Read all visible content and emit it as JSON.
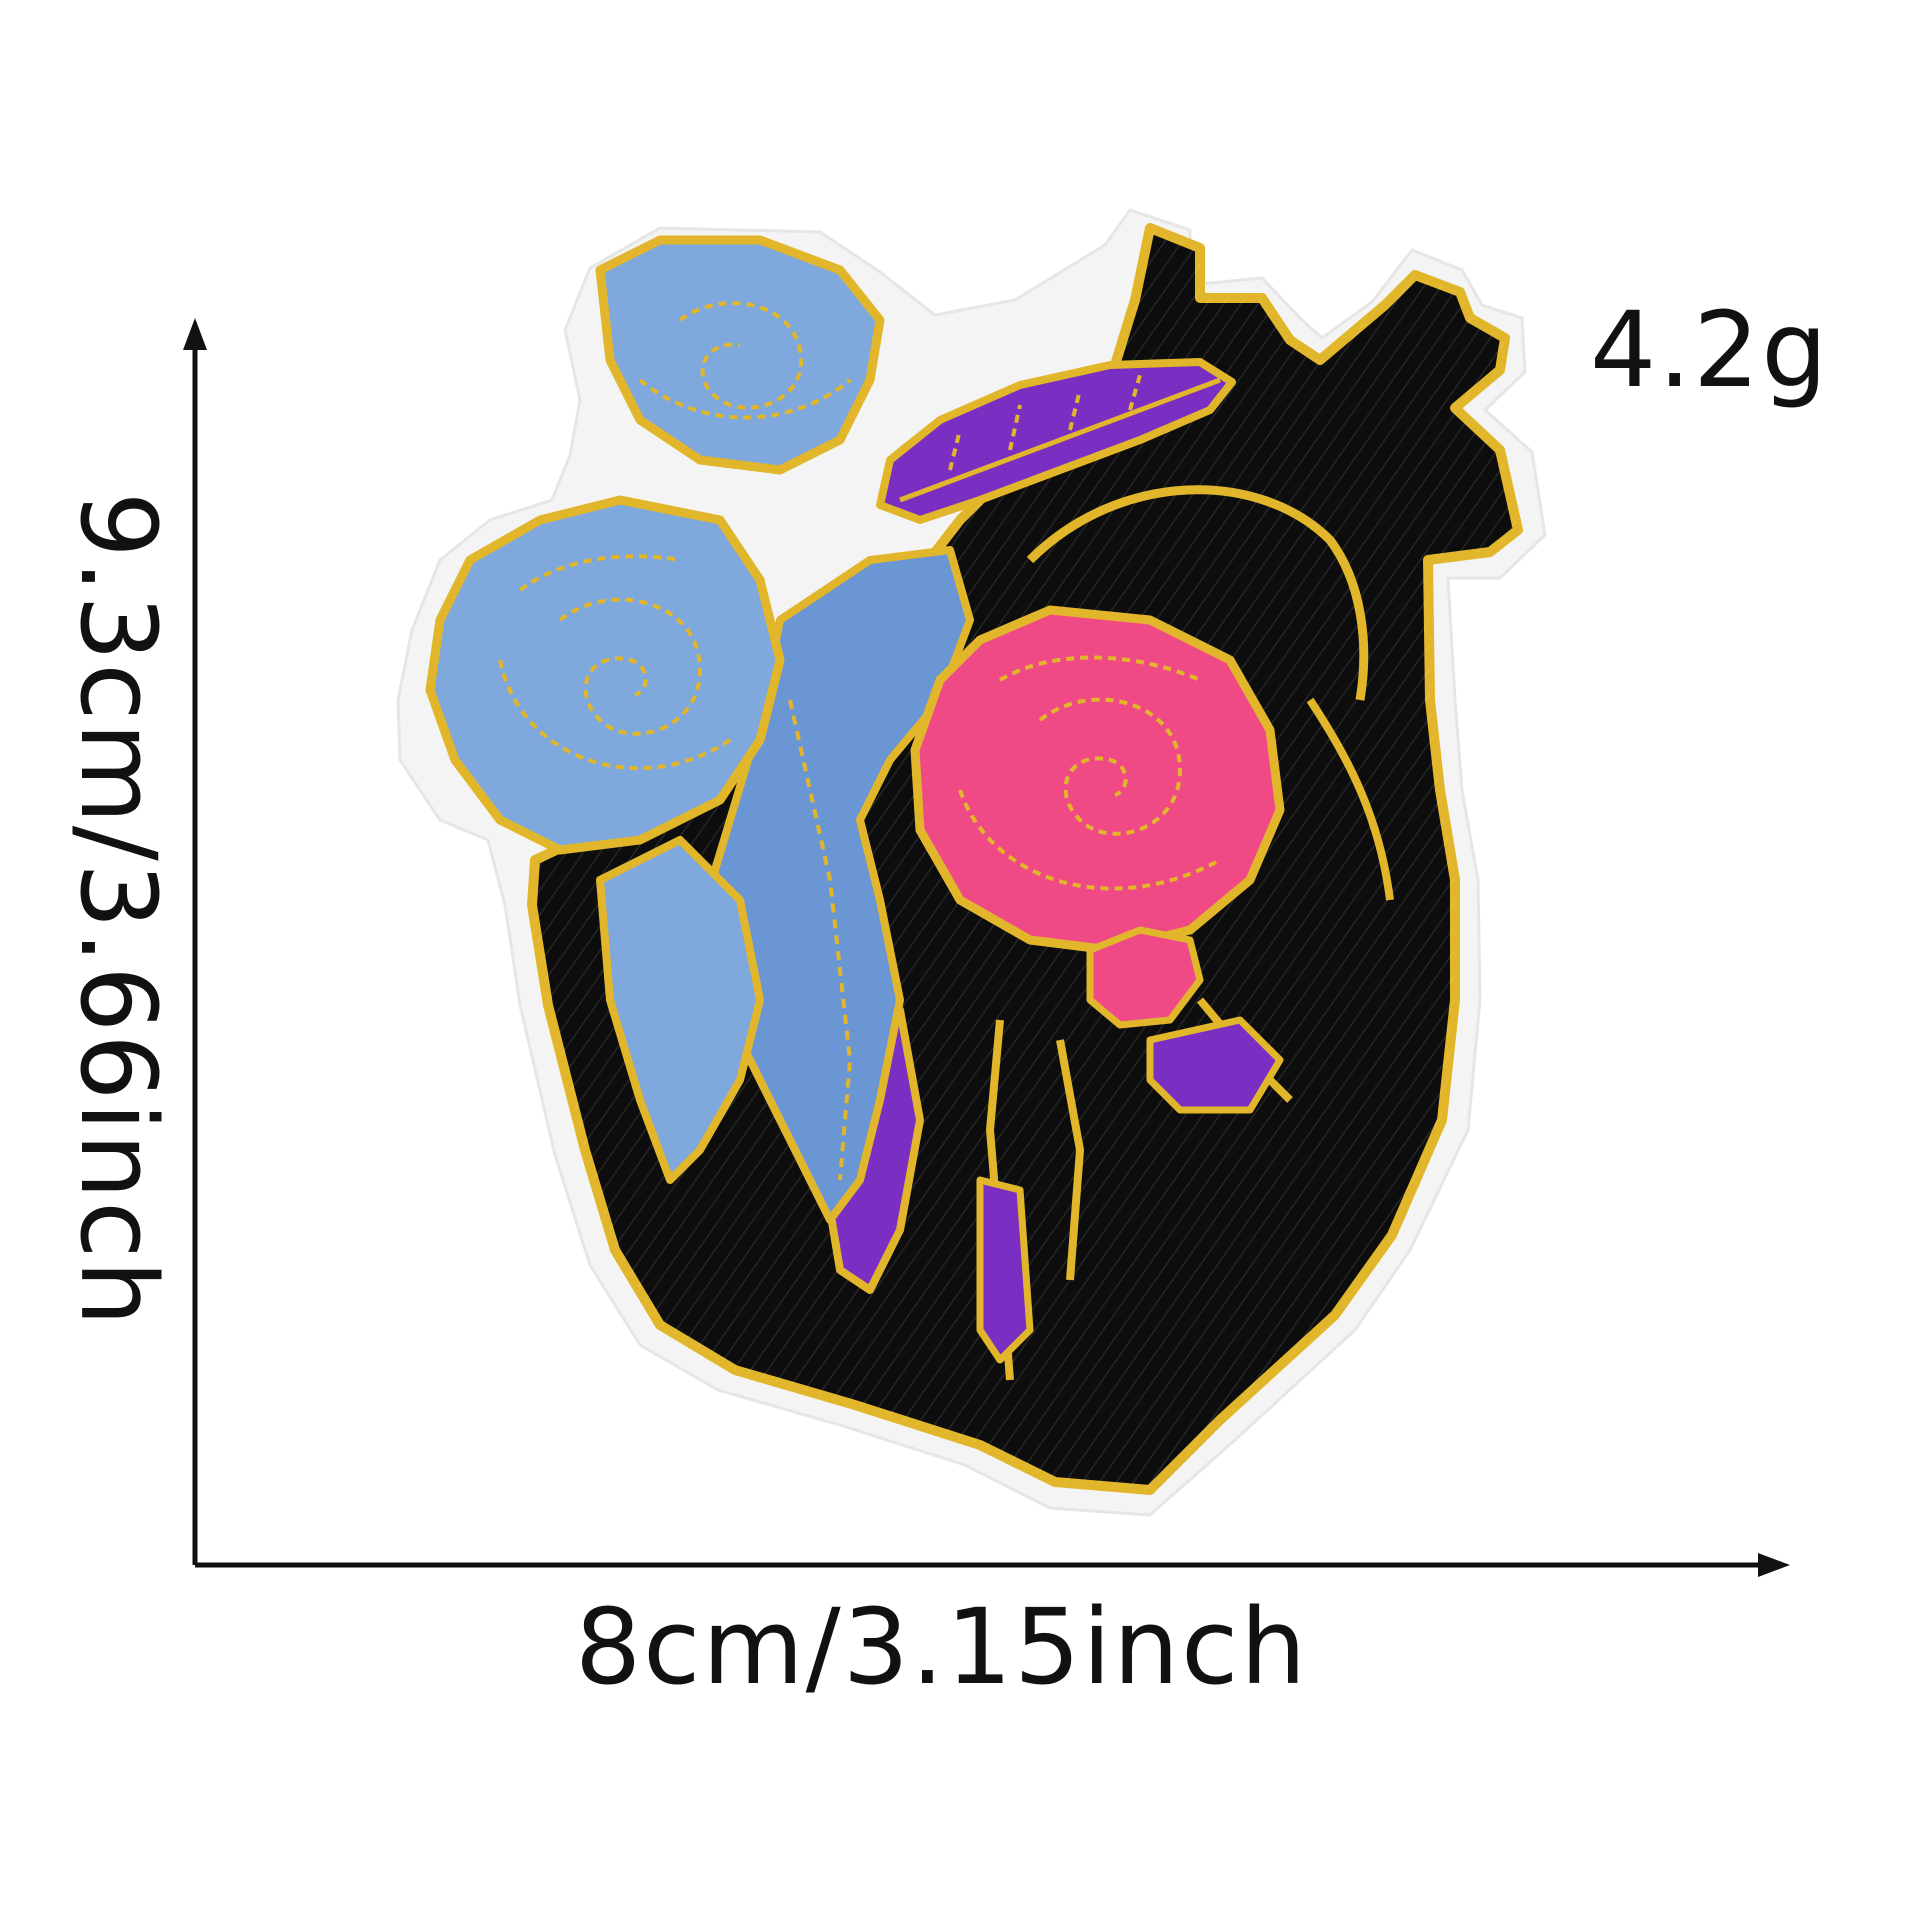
{
  "product_image": {
    "name": "heart-with-roses-embroidered-patch"
  },
  "measurements": {
    "height_label": "9.3cm/3.66inch",
    "width_label": "8cm/3.15inch",
    "weight_label": "4.2g"
  },
  "colors": {
    "background": "#ffffff",
    "felt_border": "#f4f4f4",
    "gold_thread": "#e2b62a",
    "black_fill": "#0d0d0d",
    "blue_rose": "#7fa8dc",
    "blue_leaf": "#6b96d4",
    "pink_rose": "#f04a86",
    "purple": "#7a2fc2",
    "dimension_line": "#111111"
  }
}
